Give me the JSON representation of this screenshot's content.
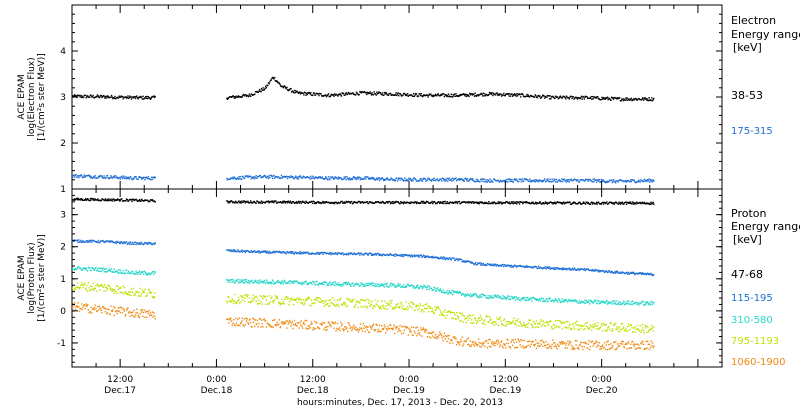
{
  "figure": {
    "xlabel": "hours:minutes, Dec. 17, 2013 - Dec. 20, 2013"
  },
  "chart_data": [
    {
      "type": "scatter",
      "panel": "electron",
      "ylabel": [
        "ACE EPAM",
        "log(Electron Flux)",
        "[1/(cm²s ster MeV)]"
      ],
      "ylim": [
        1,
        5
      ],
      "yticks": [
        1,
        2,
        3,
        4
      ],
      "xlim_hours": [
        6,
        87
      ],
      "xticks": [
        {
          "hour": 12,
          "time": "12:00",
          "date": "Dec.17"
        },
        {
          "hour": 24,
          "time": "0:00",
          "date": "Dec.18"
        },
        {
          "hour": 36,
          "time": "12:00",
          "date": "Dec.18"
        },
        {
          "hour": 48,
          "time": "0:00",
          "date": "Dec.19"
        },
        {
          "hour": 60,
          "time": "12:00",
          "date": "Dec.19"
        },
        {
          "hour": 72,
          "time": "0:00",
          "date": "Dec.20"
        }
      ],
      "legend_title": [
        "Electron",
        "Energy ranges",
        "[keV]"
      ],
      "data_gap_hours": [
        16.3,
        25.2
      ],
      "series": [
        {
          "name": "38-53",
          "color": "#000000",
          "points": [
            [
              6,
              3.03
            ],
            [
              10,
              3.02
            ],
            [
              14,
              3.0
            ],
            [
              16.2,
              3.0
            ],
            [
              25.3,
              3.0
            ],
            [
              28,
              3.05
            ],
            [
              30,
              3.2
            ],
            [
              31,
              3.45
            ],
            [
              32,
              3.25
            ],
            [
              34,
              3.1
            ],
            [
              38,
              3.05
            ],
            [
              42,
              3.1
            ],
            [
              46,
              3.08
            ],
            [
              50,
              3.05
            ],
            [
              54,
              3.05
            ],
            [
              58,
              3.08
            ],
            [
              62,
              3.05
            ],
            [
              66,
              3.0
            ],
            [
              70,
              3.0
            ],
            [
              74,
              2.97
            ],
            [
              78.5,
              2.97
            ]
          ]
        },
        {
          "name": "175-315",
          "color": "#1f6fd6",
          "points": [
            [
              6,
              1.3
            ],
            [
              10,
              1.28
            ],
            [
              14,
              1.25
            ],
            [
              16.2,
              1.25
            ],
            [
              25.3,
              1.25
            ],
            [
              30,
              1.28
            ],
            [
              34,
              1.27
            ],
            [
              38,
              1.25
            ],
            [
              42,
              1.25
            ],
            [
              46,
              1.22
            ],
            [
              50,
              1.22
            ],
            [
              54,
              1.22
            ],
            [
              58,
              1.2
            ],
            [
              62,
              1.2
            ],
            [
              66,
              1.2
            ],
            [
              70,
              1.2
            ],
            [
              74,
              1.18
            ],
            [
              78.5,
              1.2
            ]
          ]
        }
      ]
    },
    {
      "type": "scatter",
      "panel": "proton",
      "ylabel": [
        "ACE EPAM",
        "log(Proton Flux)",
        "[1/(cm²s ster MeV)]"
      ],
      "ylim": [
        -1.75,
        3.8
      ],
      "yticks": [
        -1,
        0,
        1,
        2,
        3
      ],
      "xlim_hours": [
        6,
        87
      ],
      "legend_title": [
        "Proton",
        "Energy ranges",
        "[keV]"
      ],
      "data_gap_hours": [
        16.3,
        25.2
      ],
      "series": [
        {
          "name": "47-68",
          "color": "#000000",
          "points": [
            [
              6,
              3.5
            ],
            [
              12,
              3.48
            ],
            [
              16.2,
              3.45
            ],
            [
              25.3,
              3.42
            ],
            [
              40,
              3.4
            ],
            [
              55,
              3.4
            ],
            [
              70,
              3.38
            ],
            [
              78.5,
              3.38
            ]
          ]
        },
        {
          "name": "115-195",
          "color": "#1f6fd6",
          "points": [
            [
              6,
              2.2
            ],
            [
              10,
              2.18
            ],
            [
              14,
              2.12
            ],
            [
              16.2,
              2.12
            ],
            [
              25.3,
              1.9
            ],
            [
              30,
              1.85
            ],
            [
              36,
              1.82
            ],
            [
              44,
              1.78
            ],
            [
              50,
              1.72
            ],
            [
              54,
              1.62
            ],
            [
              56,
              1.5
            ],
            [
              58,
              1.45
            ],
            [
              64,
              1.38
            ],
            [
              70,
              1.3
            ],
            [
              74,
              1.22
            ],
            [
              78.5,
              1.15
            ]
          ]
        },
        {
          "name": "310-580",
          "color": "#25d6c8",
          "points": [
            [
              6,
              1.35
            ],
            [
              10,
              1.3
            ],
            [
              14,
              1.2
            ],
            [
              16.2,
              1.2
            ],
            [
              25.3,
              0.95
            ],
            [
              32,
              0.92
            ],
            [
              40,
              0.85
            ],
            [
              46,
              0.82
            ],
            [
              50,
              0.75
            ],
            [
              53,
              0.6
            ],
            [
              56,
              0.5
            ],
            [
              62,
              0.4
            ],
            [
              70,
              0.3
            ],
            [
              78.5,
              0.25
            ]
          ]
        },
        {
          "name": "795-1193",
          "color": "#bfe000",
          "points": [
            [
              6,
              0.8
            ],
            [
              10,
              0.75
            ],
            [
              14,
              0.6
            ],
            [
              16.2,
              0.55
            ],
            [
              25.3,
              0.4
            ],
            [
              32,
              0.35
            ],
            [
              40,
              0.28
            ],
            [
              46,
              0.2
            ],
            [
              50,
              0.12
            ],
            [
              53,
              -0.1
            ],
            [
              56,
              -0.25
            ],
            [
              62,
              -0.35
            ],
            [
              70,
              -0.45
            ],
            [
              78.5,
              -0.55
            ]
          ]
        },
        {
          "name": "1060-1900",
          "color": "#ef8a12",
          "points": [
            [
              6,
              0.15
            ],
            [
              10,
              0.05
            ],
            [
              14,
              -0.05
            ],
            [
              16.2,
              -0.1
            ],
            [
              25.3,
              -0.3
            ],
            [
              32,
              -0.38
            ],
            [
              40,
              -0.48
            ],
            [
              46,
              -0.55
            ],
            [
              50,
              -0.65
            ],
            [
              53,
              -0.85
            ],
            [
              56,
              -1.0
            ],
            [
              62,
              -1.0
            ],
            [
              70,
              -1.05
            ],
            [
              78.5,
              -1.05
            ]
          ]
        }
      ]
    }
  ]
}
